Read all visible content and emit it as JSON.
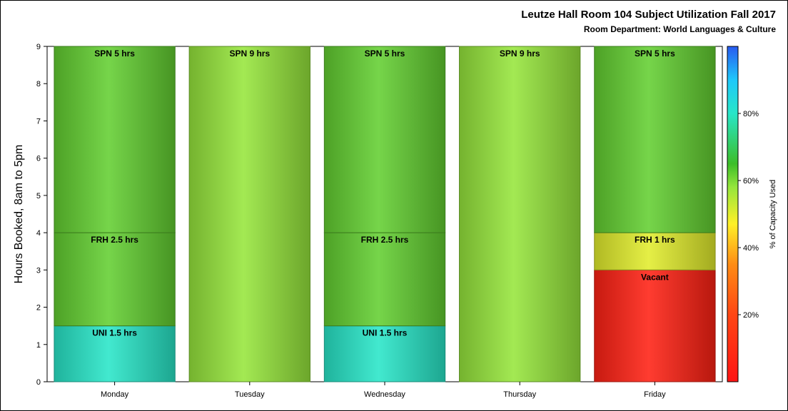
{
  "header": {
    "title": "Leutze Hall Room 104 Subject Utilization Fall 2017",
    "subtitle": "Room Department:  World Languages & Culture"
  },
  "chart_data": {
    "type": "bar",
    "stacked": true,
    "title": "Leutze Hall Room 104 Subject Utilization Fall 2017",
    "subtitle": "Room Department:  World Languages & Culture",
    "xlabel": "",
    "ylabel": "Hours Booked, 8am to 5pm",
    "ylim": [
      0,
      9
    ],
    "yticks": [
      0,
      1,
      2,
      3,
      4,
      5,
      6,
      7,
      8,
      9
    ],
    "categories": [
      "Monday",
      "Tuesday",
      "Wednesday",
      "Thursday",
      "Friday"
    ],
    "bars": [
      {
        "category": "Monday",
        "segments": [
          {
            "label": "UNI 1.5 hrs",
            "value": 1.5,
            "pct_capacity": 80
          },
          {
            "label": "FRH 2.5 hrs",
            "value": 2.5,
            "pct_capacity": 62
          },
          {
            "label": "SPN 5 hrs",
            "value": 5,
            "pct_capacity": 62
          }
        ]
      },
      {
        "category": "Tuesday",
        "segments": [
          {
            "label": "SPN 9 hrs",
            "value": 9,
            "pct_capacity": 58
          }
        ]
      },
      {
        "category": "Wednesday",
        "segments": [
          {
            "label": "UNI 1.5 hrs",
            "value": 1.5,
            "pct_capacity": 80
          },
          {
            "label": "FRH 2.5 hrs",
            "value": 2.5,
            "pct_capacity": 62
          },
          {
            "label": "SPN 5 hrs",
            "value": 5,
            "pct_capacity": 62
          }
        ]
      },
      {
        "category": "Thursday",
        "segments": [
          {
            "label": "SPN 9 hrs",
            "value": 9,
            "pct_capacity": 58
          }
        ]
      },
      {
        "category": "Friday",
        "segments": [
          {
            "label": "Vacant",
            "value": 3,
            "pct_capacity": 5
          },
          {
            "label": "FRH 1 hrs",
            "value": 1,
            "pct_capacity": 50
          },
          {
            "label": "SPN 5 hrs",
            "value": 5,
            "pct_capacity": 62
          }
        ]
      }
    ],
    "colorbar": {
      "title": "% of Capacity Used",
      "ticks": [
        20,
        40,
        60,
        80
      ],
      "tick_format": "%",
      "range": [
        0,
        100
      ]
    },
    "grid": false
  }
}
